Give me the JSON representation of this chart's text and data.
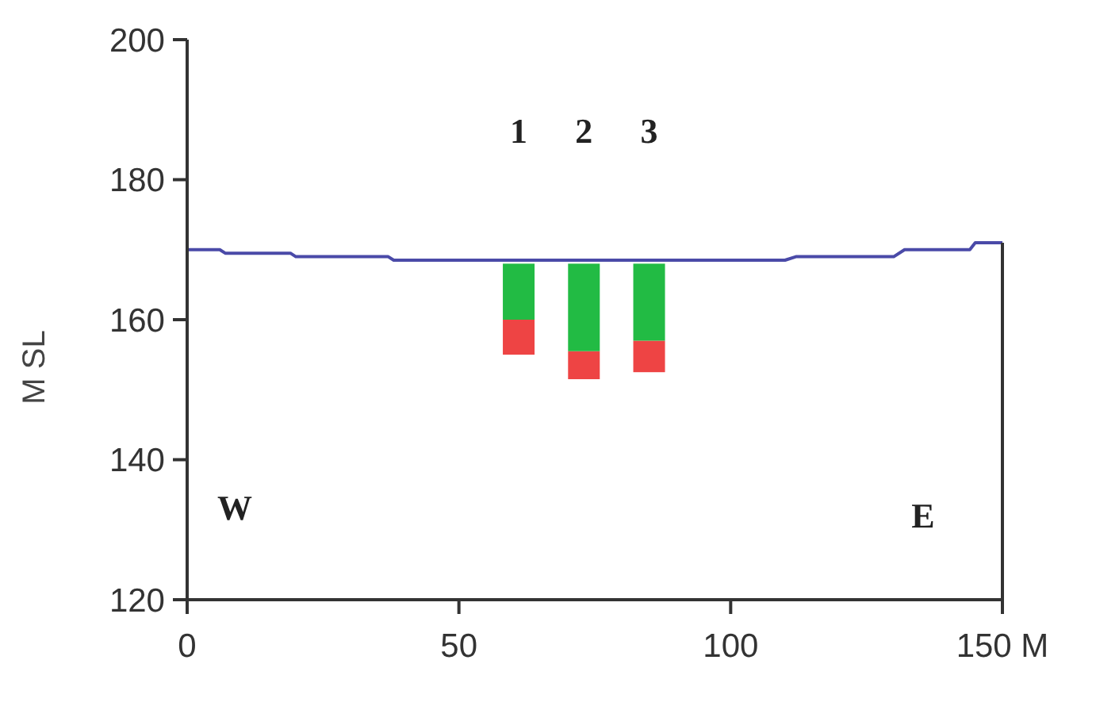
{
  "chart_data": {
    "type": "bar",
    "ylabel": "M SL",
    "xlim": [
      0,
      150
    ],
    "xticks": [
      0,
      50,
      100,
      {
        "value": 150,
        "label": "150 M"
      }
    ],
    "ylim": [
      120,
      200
    ],
    "yticks": [
      120,
      140,
      160,
      180,
      200
    ],
    "grid": false,
    "x": [
      61,
      73,
      85
    ],
    "series": [
      {
        "color": "#ee4444",
        "base": [
          155,
          151.5,
          152.5
        ],
        "values": [
          5,
          4,
          4.5
        ]
      },
      {
        "color": "#22bb44",
        "base": [
          160,
          155.5,
          157
        ],
        "values": [
          8,
          12.5,
          11
        ]
      },
      {
        "type": "line",
        "color": "#4a4aa8",
        "marker": "none",
        "x": [
          0,
          6,
          7,
          19,
          20,
          37,
          38,
          110,
          112,
          130,
          132,
          144,
          145,
          150
        ],
        "values": [
          170,
          170,
          169.5,
          169.5,
          169,
          169,
          168.5,
          168.5,
          169,
          169,
          170,
          170,
          171,
          171
        ]
      }
    ],
    "annotations": [
      "1",
      "2",
      "3",
      "W",
      "E"
    ]
  }
}
